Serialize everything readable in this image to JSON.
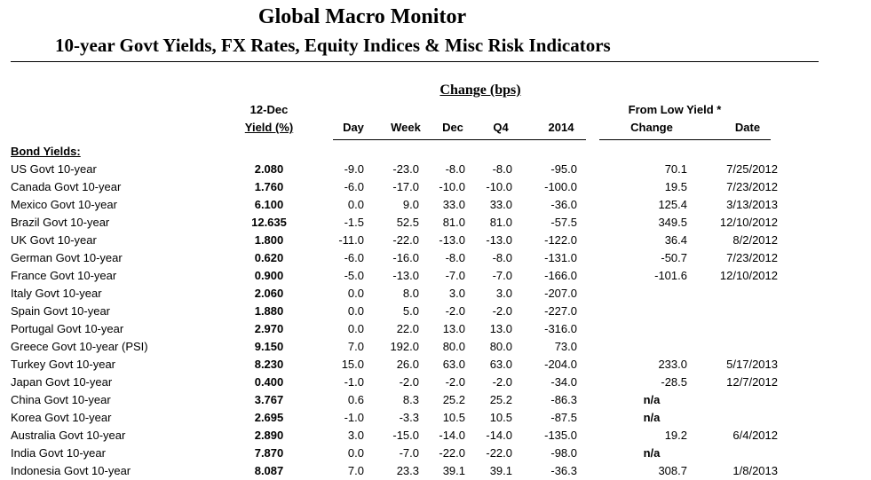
{
  "header": {
    "title": "Global Macro Monitor",
    "subtitle": "10-year Govt Yields, FX Rates, Equity Indices & Misc Risk Indicators"
  },
  "table": {
    "group_headers": {
      "change": "Change (bps)",
      "from_low": "From Low Yield *"
    },
    "level_header": [
      "12-Dec",
      "Yield (%)"
    ],
    "columns": [
      "Day",
      "Week",
      "Dec",
      "Q4",
      "2014",
      "Change",
      "Date"
    ],
    "section": "Bond Yields:",
    "rows": [
      {
        "name": "US Govt 10-year",
        "yield": "2.080",
        "changes": [
          "-9.0",
          "-23.0",
          "-8.0",
          "-8.0",
          "-95.0"
        ],
        "from_low": [
          "70.1",
          "7/25/2012"
        ]
      },
      {
        "name": "Canada Govt 10-year",
        "yield": "1.760",
        "changes": [
          "-6.0",
          "-17.0",
          "-10.0",
          "-10.0",
          "-100.0"
        ],
        "from_low": [
          "19.5",
          "7/23/2012"
        ]
      },
      {
        "name": "Mexico Govt 10-year",
        "yield": "6.100",
        "changes": [
          "0.0",
          "9.0",
          "33.0",
          "33.0",
          "-36.0"
        ],
        "from_low": [
          "125.4",
          "3/13/2013"
        ]
      },
      {
        "name": "Brazil Govt 10-year",
        "yield": "12.635",
        "changes": [
          "-1.5",
          "52.5",
          "81.0",
          "81.0",
          "-57.5"
        ],
        "from_low": [
          "349.5",
          "12/10/2012"
        ]
      },
      {
        "name": "UK Govt 10-year",
        "yield": "1.800",
        "changes": [
          "-11.0",
          "-22.0",
          "-13.0",
          "-13.0",
          "-122.0"
        ],
        "from_low": [
          "36.4",
          "8/2/2012"
        ]
      },
      {
        "name": "German Govt 10-year",
        "yield": "0.620",
        "changes": [
          "-6.0",
          "-16.0",
          "-8.0",
          "-8.0",
          "-131.0"
        ],
        "from_low": [
          "-50.7",
          "7/23/2012"
        ]
      },
      {
        "name": "France Govt 10-year",
        "yield": "0.900",
        "changes": [
          "-5.0",
          "-13.0",
          "-7.0",
          "-7.0",
          "-166.0"
        ],
        "from_low": [
          "-101.6",
          "12/10/2012"
        ]
      },
      {
        "name": "Italy Govt 10-year",
        "yield": "2.060",
        "changes": [
          "0.0",
          "8.0",
          "3.0",
          "3.0",
          "-207.0"
        ],
        "from_low": []
      },
      {
        "name": "Spain Govt 10-year",
        "yield": "1.880",
        "changes": [
          "0.0",
          "5.0",
          "-2.0",
          "-2.0",
          "-227.0"
        ],
        "from_low": []
      },
      {
        "name": "Portugal Govt 10-year",
        "yield": "2.970",
        "changes": [
          "0.0",
          "22.0",
          "13.0",
          "13.0",
          "-316.0"
        ],
        "from_low": []
      },
      {
        "name": "Greece Govt 10-year (PSI)",
        "yield": "9.150",
        "changes": [
          "7.0",
          "192.0",
          "80.0",
          "80.0",
          "73.0"
        ],
        "from_low": []
      },
      {
        "name": "Turkey Govt 10-year",
        "yield": "8.230",
        "changes": [
          "15.0",
          "26.0",
          "63.0",
          "63.0",
          "-204.0"
        ],
        "from_low": [
          "233.0",
          "5/17/2013"
        ]
      },
      {
        "name": "Japan Govt 10-year",
        "yield": "0.400",
        "changes": [
          "-1.0",
          "-2.0",
          "-2.0",
          "-2.0",
          "-34.0"
        ],
        "from_low": [
          "-28.5",
          "12/7/2012"
        ]
      },
      {
        "name": "China Govt 10-year",
        "yield": "3.767",
        "changes": [
          "0.6",
          "8.3",
          "25.2",
          "25.2",
          "-86.3"
        ],
        "from_low": [
          "n/a"
        ]
      },
      {
        "name": "Korea Govt 10-year",
        "yield": "2.695",
        "changes": [
          "-1.0",
          "-3.3",
          "10.5",
          "10.5",
          "-87.5"
        ],
        "from_low": [
          "n/a"
        ]
      },
      {
        "name": "Australia Govt 10-year",
        "yield": "2.890",
        "changes": [
          "3.0",
          "-15.0",
          "-14.0",
          "-14.0",
          "-135.0"
        ],
        "from_low": [
          "19.2",
          "6/4/2012"
        ]
      },
      {
        "name": "India Govt 10-year",
        "yield": "7.870",
        "changes": [
          "0.0",
          "-7.0",
          "-22.0",
          "-22.0",
          "-98.0"
        ],
        "from_low": [
          "n/a"
        ]
      },
      {
        "name": "Indonesia Govt 10-year",
        "yield": "8.087",
        "changes": [
          "7.0",
          "23.3",
          "39.1",
          "39.1",
          "-36.3"
        ],
        "from_low": [
          "308.7",
          "1/8/2013"
        ]
      }
    ]
  }
}
